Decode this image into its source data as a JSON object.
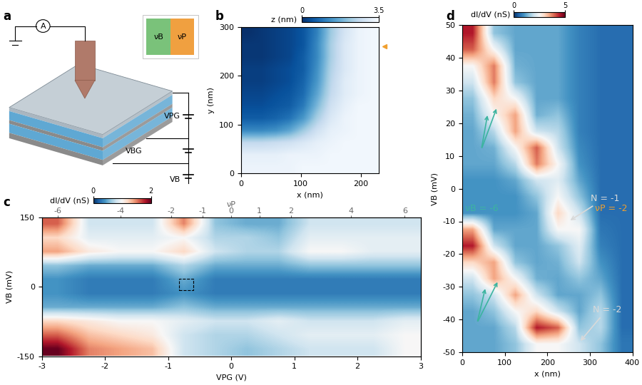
{
  "diagram": {
    "panel": "a",
    "meter": "A",
    "plate_gate": "VPG",
    "back_gate": "VBG",
    "bias": "VB",
    "inset_left": "νB",
    "inset_right": "νP"
  },
  "chart_data": [
    {
      "panel": "b",
      "type": "heatmap",
      "xlabel": "x (nm)",
      "ylabel": "y (nm)",
      "xlim": [
        0,
        230
      ],
      "ylim": [
        0,
        300
      ],
      "xticks": [
        0,
        100,
        200
      ],
      "yticks": [
        0,
        100,
        200,
        300
      ],
      "x_edges": [
        0,
        23,
        46,
        69,
        92,
        115,
        138,
        161,
        184,
        207,
        230
      ],
      "y_edges": [
        0,
        25,
        50,
        75,
        100,
        125,
        150,
        175,
        200,
        225,
        250,
        275,
        300
      ],
      "cells": [
        [
          3.3,
          3.3,
          3.3,
          3.3,
          3.4,
          3.4,
          3.4,
          3.4,
          3.4,
          3.4
        ],
        [
          3.2,
          3.2,
          3.2,
          3.3,
          3.3,
          3.3,
          3.4,
          3.4,
          3.4,
          3.4
        ],
        [
          2.6,
          2.6,
          2.7,
          2.8,
          3.0,
          3.2,
          3.3,
          3.4,
          3.4,
          3.4
        ],
        [
          1.2,
          1.2,
          1.3,
          1.6,
          2.2,
          2.8,
          3.2,
          3.3,
          3.4,
          3.4
        ],
        [
          0.6,
          0.6,
          0.7,
          0.9,
          1.4,
          2.3,
          3.0,
          3.3,
          3.4,
          3.4
        ],
        [
          0.4,
          0.4,
          0.5,
          0.6,
          1.0,
          1.9,
          2.8,
          3.2,
          3.4,
          3.4
        ],
        [
          0.3,
          0.3,
          0.4,
          0.5,
          0.8,
          1.6,
          2.6,
          3.1,
          3.3,
          3.4
        ],
        [
          0.2,
          0.2,
          0.3,
          0.4,
          0.7,
          1.4,
          2.5,
          3.1,
          3.3,
          3.4
        ],
        [
          0.2,
          0.2,
          0.3,
          0.4,
          0.6,
          1.3,
          2.4,
          3.0,
          3.3,
          3.4
        ],
        [
          0.1,
          0.1,
          0.2,
          0.3,
          0.6,
          1.2,
          2.3,
          3.0,
          3.3,
          3.4
        ],
        [
          0.1,
          0.1,
          0.2,
          0.3,
          0.5,
          1.2,
          2.3,
          3.0,
          3.3,
          3.4
        ],
        [
          0.0,
          0.1,
          0.2,
          0.3,
          0.5,
          1.1,
          2.2,
          2.9,
          3.3,
          3.4
        ]
      ],
      "colorbar": {
        "label": "z (nm)",
        "range": [
          0,
          3.5
        ],
        "ticks": [
          0,
          3.5
        ]
      },
      "marker_y": 260,
      "color": "#f0a030"
    },
    {
      "panel": "c",
      "type": "heatmap",
      "xlabel": "VPG (V)",
      "ylabel": "VB (mV)",
      "xlim": [
        -3,
        3
      ],
      "ylim": [
        -150,
        150
      ],
      "xticks": [
        -3,
        -2,
        -1,
        0,
        1,
        2,
        3
      ],
      "yticks": [
        -150,
        0,
        150
      ],
      "top_axis": {
        "label": "νP",
        "ticks": [
          {
            "value": -2.75,
            "label": "-6"
          },
          {
            "value": -1.75,
            "label": "-4"
          },
          {
            "value": -0.95,
            "label": "-2"
          },
          {
            "value": -0.45,
            "label": "-1"
          },
          {
            "value": 0,
            "label": "0"
          },
          {
            "value": 0.45,
            "label": "1"
          },
          {
            "value": 0.95,
            "label": "2"
          },
          {
            "value": 1.9,
            "label": "4"
          },
          {
            "value": 2.75,
            "label": "6"
          }
        ]
      },
      "x_edges": [
        -3,
        -2.5,
        -2,
        -1.5,
        -1,
        -0.5,
        0,
        0.5,
        1,
        1.5,
        2,
        2.5,
        3
      ],
      "y_edges": [
        -150,
        -120,
        -90,
        -60,
        -30,
        0,
        30,
        60,
        90,
        120,
        150
      ],
      "cells": [
        [
          2.0,
          1.5,
          1.4,
          1.3,
          0.8,
          0.7,
          0.6,
          0.7,
          0.8,
          0.8,
          0.8,
          1.0
        ],
        [
          1.6,
          1.3,
          1.2,
          1.1,
          0.8,
          0.7,
          0.7,
          0.8,
          0.9,
          0.9,
          0.9,
          1.0
        ],
        [
          1.2,
          1.1,
          1.0,
          1.0,
          0.9,
          0.8,
          0.8,
          0.9,
          0.8,
          0.8,
          0.8,
          0.9
        ],
        [
          0.5,
          0.5,
          0.5,
          0.5,
          0.6,
          0.5,
          0.5,
          0.5,
          0.5,
          0.5,
          0.5,
          0.5
        ],
        [
          0.4,
          0.3,
          0.3,
          0.3,
          0.4,
          0.3,
          0.3,
          0.3,
          0.3,
          0.3,
          0.3,
          0.3
        ],
        [
          0.4,
          0.3,
          0.3,
          0.3,
          0.5,
          0.3,
          0.3,
          0.3,
          0.3,
          0.3,
          0.3,
          0.3
        ],
        [
          0.6,
          0.5,
          0.5,
          0.5,
          0.7,
          0.5,
          0.5,
          0.5,
          0.6,
          0.6,
          0.6,
          0.6
        ],
        [
          1.4,
          1.1,
          1.0,
          1.0,
          1.2,
          0.8,
          0.7,
          0.7,
          1.0,
          1.0,
          0.9,
          0.9
        ],
        [
          1.2,
          0.9,
          0.9,
          0.9,
          1.0,
          0.7,
          0.7,
          0.6,
          0.9,
          0.9,
          0.9,
          0.9
        ],
        [
          1.6,
          0.8,
          0.8,
          0.8,
          1.5,
          0.6,
          0.5,
          0.5,
          0.8,
          0.8,
          0.8,
          0.8
        ]
      ],
      "colorbar": {
        "label": "dI/dV (nS)",
        "range": [
          0,
          2
        ],
        "ticks": [
          0,
          2
        ]
      },
      "box": {
        "x": [
          -0.82,
          -0.6
        ],
        "y": [
          -8,
          18
        ]
      }
    },
    {
      "panel": "d",
      "type": "heatmap",
      "xlabel": "x (nm)",
      "ylabel": "VB (mV)",
      "xlim": [
        0,
        400
      ],
      "ylim": [
        -50,
        50
      ],
      "xticks": [
        0,
        100,
        200,
        300,
        400
      ],
      "yticks": [
        -50,
        -40,
        -30,
        -20,
        -10,
        0,
        10,
        20,
        30,
        40,
        50
      ],
      "x_edges": [
        0,
        50,
        100,
        150,
        200,
        250,
        300,
        350,
        400
      ],
      "y_edges": [
        -50,
        -45,
        -40,
        -35,
        -30,
        -25,
        -20,
        -15,
        -10,
        -5,
        0,
        5,
        10,
        15,
        20,
        25,
        30,
        35,
        40,
        45,
        50
      ],
      "cells": [
        [
          1.2,
          1.2,
          1.5,
          2.5,
          2.5,
          2.0,
          1.5,
          0.7
        ],
        [
          1.2,
          1.2,
          1.8,
          4.5,
          4.0,
          1.5,
          1.8,
          0.6
        ],
        [
          1.2,
          1.5,
          2.5,
          3.0,
          2.0,
          1.2,
          1.8,
          0.6
        ],
        [
          1.5,
          2.0,
          3.5,
          2.0,
          1.2,
          1.2,
          1.5,
          0.6
        ],
        [
          2.0,
          3.5,
          2.5,
          1.3,
          1.2,
          1.5,
          1.2,
          0.6
        ],
        [
          3.0,
          3.5,
          1.5,
          1.2,
          1.3,
          2.0,
          1.0,
          0.6
        ],
        [
          4.5,
          2.0,
          1.2,
          1.2,
          1.5,
          2.2,
          0.8,
          0.6
        ],
        [
          3.5,
          1.2,
          1.2,
          1.2,
          2.5,
          2.5,
          0.7,
          0.6
        ],
        [
          1.0,
          1.0,
          1.0,
          1.2,
          3.0,
          2.0,
          0.6,
          0.6
        ],
        [
          1.0,
          1.0,
          1.0,
          1.5,
          2.5,
          1.5,
          0.6,
          0.6
        ],
        [
          1.0,
          1.0,
          1.2,
          2.0,
          2.2,
          1.2,
          0.6,
          0.6
        ],
        [
          1.2,
          1.2,
          1.8,
          3.8,
          2.5,
          1.0,
          0.6,
          0.6
        ],
        [
          1.2,
          1.3,
          2.5,
          4.0,
          2.0,
          0.9,
          0.6,
          0.6
        ],
        [
          1.2,
          1.8,
          3.5,
          2.0,
          1.8,
          0.8,
          0.6,
          0.6
        ],
        [
          1.3,
          2.5,
          3.5,
          1.3,
          1.5,
          0.8,
          0.6,
          0.6
        ],
        [
          1.5,
          3.0,
          2.5,
          1.2,
          1.2,
          0.8,
          0.6,
          0.6
        ],
        [
          2.0,
          3.8,
          1.5,
          1.2,
          1.2,
          0.8,
          0.6,
          0.6
        ],
        [
          2.5,
          3.8,
          1.3,
          1.2,
          1.2,
          0.8,
          0.6,
          0.6
        ],
        [
          4.0,
          2.5,
          1.2,
          1.2,
          1.2,
          0.8,
          0.6,
          0.6
        ],
        [
          4.5,
          1.5,
          1.2,
          1.2,
          1.2,
          0.8,
          0.6,
          0.6
        ]
      ],
      "colorbar": {
        "label": "dI/dV (nS)",
        "range": [
          0,
          5
        ],
        "ticks": [
          0,
          5
        ]
      },
      "annotations": [
        {
          "text": "N = -1",
          "at": [
            335,
            -3
          ],
          "points_to": [
            250,
            -10
          ],
          "color": "#d9d9d9"
        },
        {
          "text": "N = -2",
          "at": [
            340,
            -37
          ],
          "points_to": [
            275,
            -47
          ],
          "color": "#d9d9d9"
        },
        {
          "text": "νB = -6",
          "at": [
            45,
            -6
          ],
          "color": "#3cb4a0"
        },
        {
          "text": "νP = -2",
          "at": [
            350,
            -6
          ],
          "color": "#f0a030"
        }
      ],
      "arrows": {
        "color": "#3cb4a0",
        "items": [
          {
            "from": [
              45,
              12
            ],
            "to": [
              60,
              23
            ]
          },
          {
            "from": [
              45,
              12
            ],
            "to": [
              82,
              25
            ]
          },
          {
            "from": [
              35,
              -41
            ],
            "to": [
              55,
              -30
            ]
          },
          {
            "from": [
              35,
              -41
            ],
            "to": [
              85,
              -28
            ]
          }
        ]
      }
    }
  ]
}
